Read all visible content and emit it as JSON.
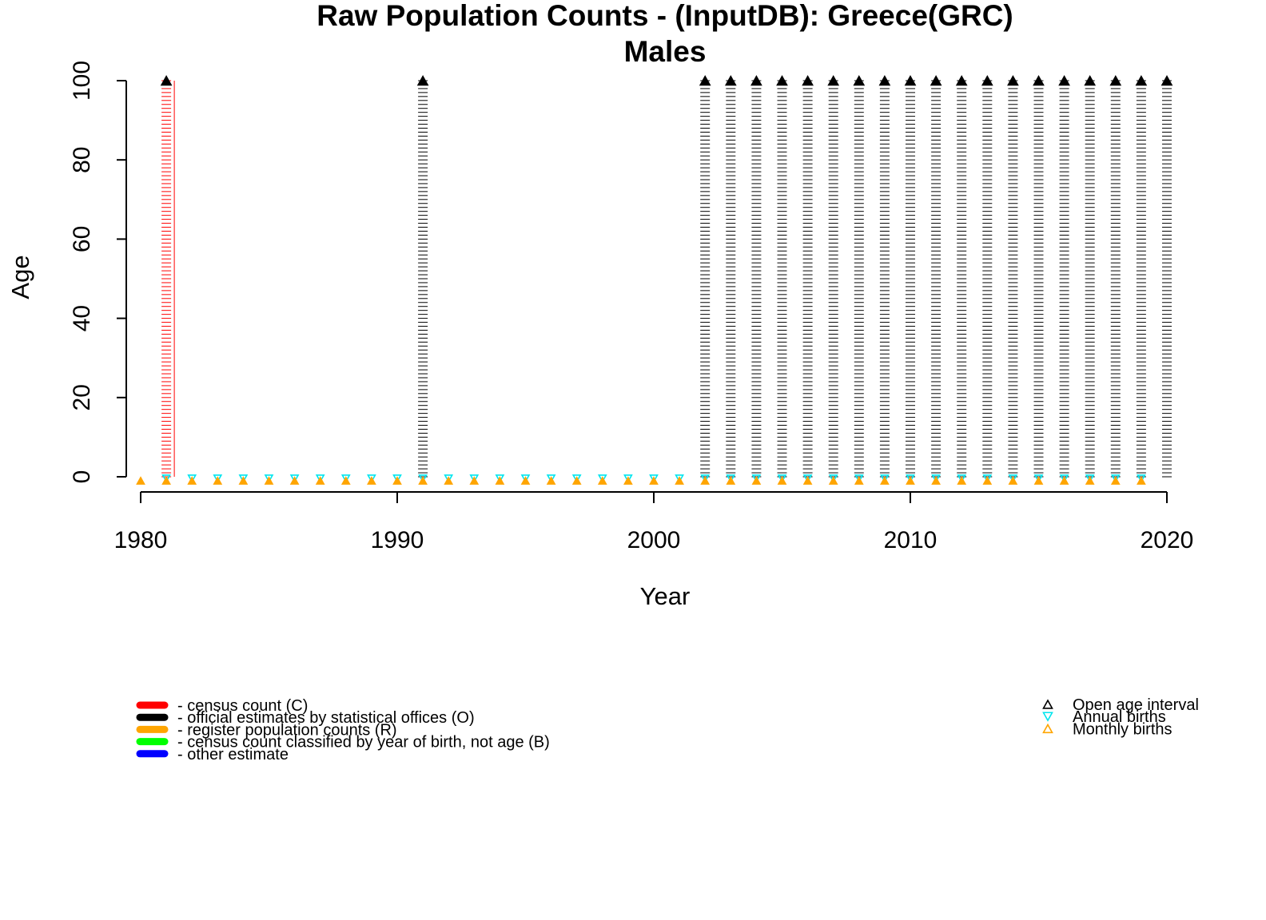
{
  "chart_data": {
    "type": "scatter",
    "title": "Raw Population Counts - (InputDB): Greece(GRC)",
    "subtitle": "Males",
    "xlabel": "Year",
    "ylabel": "Age",
    "xlim": [
      1980,
      2020
    ],
    "ylim": [
      0,
      100
    ],
    "x_ticks": [
      "1980",
      "1990",
      "2000",
      "2010",
      "2020"
    ],
    "y_ticks": [
      "0",
      "20",
      "40",
      "60",
      "80",
      "100"
    ],
    "series": [
      {
        "name": "census count (C)",
        "color": "#ff0000",
        "years": [
          1981
        ],
        "age_max": 100,
        "open_age": 100
      },
      {
        "name": "official estimates by statistical offices (O)",
        "color": "#000000",
        "years": [
          1991,
          2002,
          2003,
          2004,
          2005,
          2006,
          2007,
          2008,
          2009,
          2010,
          2011,
          2012,
          2013,
          2014,
          2015,
          2016,
          2017,
          2018,
          2019,
          2020
        ],
        "age_max": 100,
        "open_age": 100
      }
    ],
    "annual_births_years": [
      1981,
      1982,
      1983,
      1984,
      1985,
      1986,
      1987,
      1988,
      1989,
      1990,
      1991,
      1992,
      1993,
      1994,
      1995,
      1996,
      1997,
      1998,
      1999,
      2000,
      2001,
      2002,
      2003,
      2004,
      2005,
      2006,
      2007,
      2008,
      2009,
      2010,
      2011,
      2012,
      2013,
      2014,
      2015,
      2016,
      2017,
      2018,
      2019
    ],
    "monthly_births_years": [
      1980,
      1981,
      1982,
      1983,
      1984,
      1985,
      1986,
      1987,
      1988,
      1989,
      1990,
      1991,
      1992,
      1993,
      1994,
      1995,
      1996,
      1997,
      1998,
      1999,
      2000,
      2001,
      2002,
      2003,
      2004,
      2005,
      2006,
      2007,
      2008,
      2009,
      2010,
      2011,
      2012,
      2013,
      2014,
      2015,
      2016,
      2017,
      2018,
      2019
    ],
    "legend_left": [
      {
        "label": "- census count (C)",
        "color": "#ff0000"
      },
      {
        "label": "- official estimates by statistical offices (O)",
        "color": "#000000"
      },
      {
        "label": "- register population counts (R)",
        "color": "#ffa500"
      },
      {
        "label": "- census count classified by year of birth, not age (B)",
        "color": "#00ff00"
      },
      {
        "label": "- other estimate",
        "color": "#0000ff"
      }
    ],
    "legend_right": [
      {
        "label": "Open age interval",
        "symbol": "triangle-up-open",
        "color": "#000000"
      },
      {
        "label": "Annual births",
        "symbol": "triangle-down-open",
        "color": "#00e5ee"
      },
      {
        "label": "Monthly births",
        "symbol": "triangle-up-open",
        "color": "#ffa500"
      }
    ]
  }
}
